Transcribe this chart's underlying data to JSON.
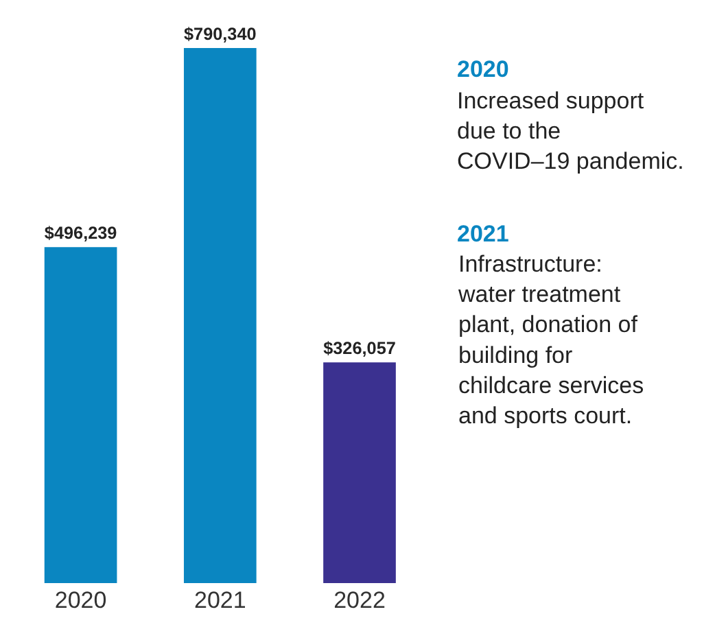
{
  "chart_data": {
    "type": "bar",
    "categories": [
      "2020",
      "2021",
      "2022"
    ],
    "values": [
      496239,
      790340,
      326057
    ],
    "value_labels": [
      "$496,239",
      "$790,340",
      "$326,057"
    ],
    "colors": [
      "#0a86c1",
      "#0a86c1",
      "#3b3190"
    ],
    "annotations": [
      "2020",
      "Increased support due to the COVID–19 pandemic.",
      "2021",
      "Infrastructure: water treatment plant, donation of building for childcare services and sports court."
    ]
  }
}
